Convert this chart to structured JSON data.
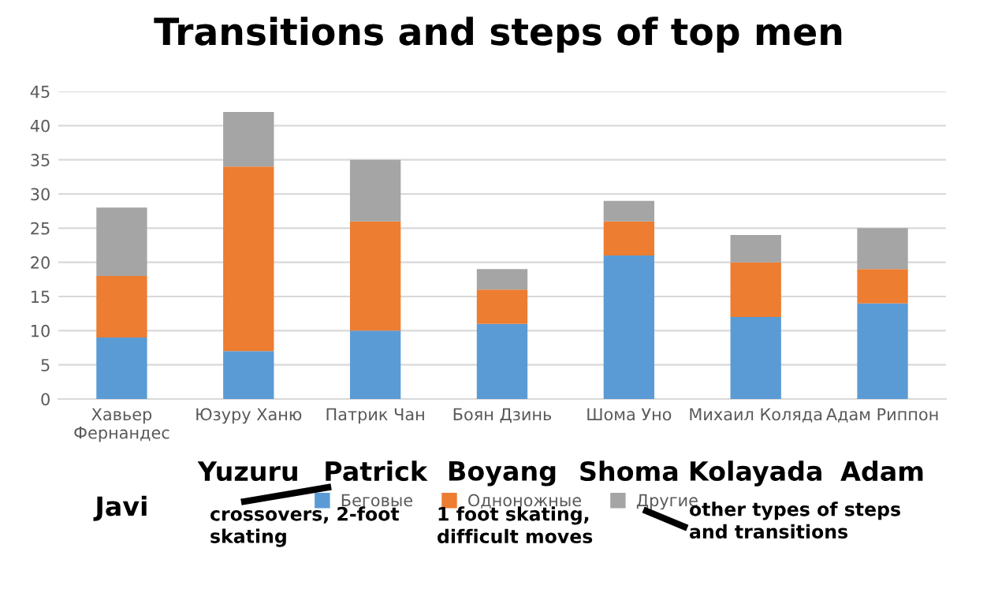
{
  "chart_data": {
    "type": "bar",
    "title": "Transitions and steps of top men",
    "stacked": true,
    "categories": [
      "Хавьер\nФернандес",
      "Юзуру Ханю",
      "Патрик Чан",
      "Боян Дзинь",
      "Шома Уно",
      "Михаил Коляда",
      "Адам Риппон"
    ],
    "series": [
      {
        "name": "Беговые",
        "color": "#5b9bd5",
        "values": [
          9,
          7,
          10,
          11,
          21,
          12,
          14
        ]
      },
      {
        "name": "Одноножные",
        "color": "#ed7d31",
        "values": [
          9,
          27,
          16,
          5,
          5,
          8,
          5
        ]
      },
      {
        "name": "Другие",
        "color": "#a5a5a5",
        "values": [
          10,
          8,
          9,
          3,
          3,
          4,
          6
        ]
      }
    ],
    "ylim": [
      0,
      45
    ],
    "yticks": [
      0,
      5,
      10,
      15,
      20,
      25,
      30,
      35,
      40,
      45
    ],
    "grid": "y",
    "legend": "bottom",
    "annotations": [
      "Javi",
      "Yuzuru",
      "Patrick",
      "Boyang",
      "Shoma",
      "Kolayada",
      "Adam",
      "crossovers, 2-foot\nskating",
      "1 foot skating,\ndifficult moves",
      "other types of steps\nand transitions"
    ]
  }
}
